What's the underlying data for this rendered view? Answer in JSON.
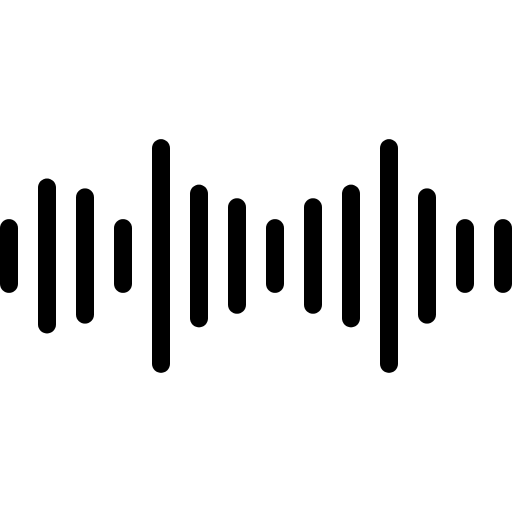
{
  "icon": {
    "name": "sound-wave-icon",
    "color": "#000000",
    "bar_levels": [
      0.3,
      0.63,
      0.55,
      0.3,
      0.95,
      0.58,
      0.47,
      0.3,
      0.47,
      0.58,
      0.95,
      0.55,
      0.3,
      0.3
    ]
  }
}
